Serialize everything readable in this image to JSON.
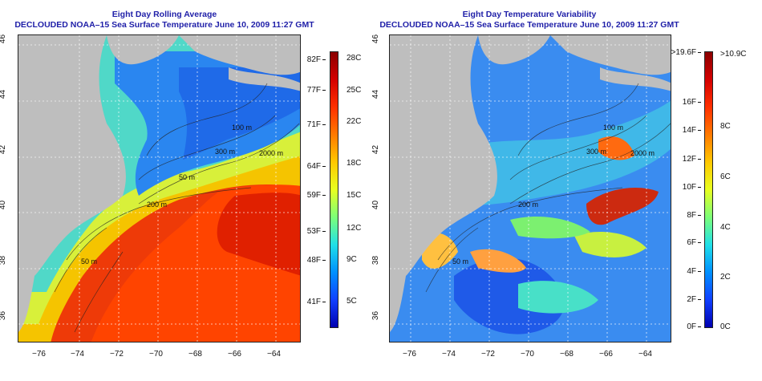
{
  "left_panel": {
    "title_line1": "Eight Day Rolling Average",
    "title_line2": "DECLOUDED NOAA–15 Sea Surface Temperature June 10, 2009 11:27 GMT",
    "colorbar": {
      "left_labels": [
        "82F",
        "77F",
        "71F",
        "64F",
        "59F",
        "53F",
        "48F",
        "41F"
      ],
      "right_labels": [
        "28C",
        "25C",
        "22C",
        "18C",
        "15C",
        "12C",
        "9C",
        "5C"
      ],
      "colors": [
        "#8b0000",
        "#d40000",
        "#ff3000",
        "#ff7a00",
        "#ffc800",
        "#e8ff20",
        "#7cff78",
        "#20e0e8",
        "#0090ff",
        "#1040ff",
        "#0000b0"
      ]
    },
    "contour_labels": [
      "100 m",
      "300 m",
      "2000 m",
      "200 m",
      "50 m",
      "50 m"
    ]
  },
  "right_panel": {
    "title_line1": "Eight Day Temperature Variability",
    "title_line2": "DECLOUDED NOAA–15 Sea Surface Temperature June 10, 2009 11:27 GMT",
    "colorbar": {
      "left_labels": [
        ">19.6F",
        "16F",
        "14F",
        "12F",
        "10F",
        "8F",
        "6F",
        "4F",
        "2F",
        "0F"
      ],
      "right_labels": [
        ">10.9C",
        "8C",
        "6C",
        "4C",
        "2C",
        "0C"
      ],
      "colors": [
        "#8b0000",
        "#d40000",
        "#ff3000",
        "#ff7a00",
        "#ffc800",
        "#e8ff20",
        "#7cff78",
        "#20e0e8",
        "#0090ff",
        "#1040ff",
        "#0000b0"
      ]
    },
    "contour_labels": [
      "100 m",
      "300 m",
      "2000 m",
      "200 m",
      "50 m"
    ]
  },
  "axes": {
    "lon_ticks": [
      "−76",
      "−74",
      "−72",
      "−70",
      "−68",
      "−66",
      "−64"
    ],
    "lat_ticks": [
      "46",
      "44",
      "42",
      "40",
      "38",
      "36"
    ]
  },
  "colors": {
    "title": "#1f1fa8",
    "land": "#bebebe",
    "grid": "#ffffff"
  }
}
